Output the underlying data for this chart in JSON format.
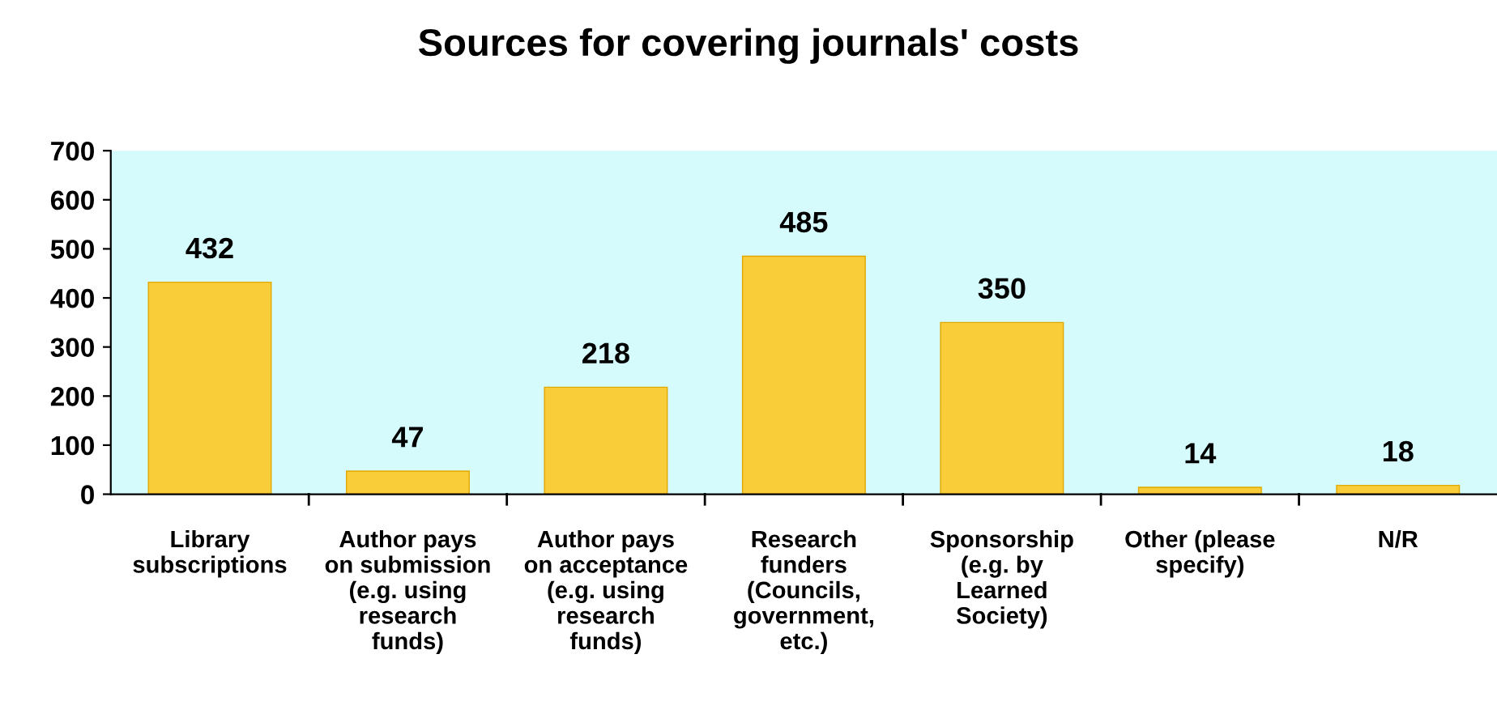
{
  "chart_data": {
    "type": "bar",
    "title": "Sources for covering journals' costs",
    "categories": [
      "Library\nsubscriptions",
      "Author pays\non submission\n(e.g. using\nresearch\nfunds)",
      "Author pays\non acceptance\n(e.g. using\nresearch\nfunds)",
      "Research\nfunders\n(Councils,\ngovernment,\netc.)",
      "Sponsorship\n(e.g. by\nLearned\nSociety)",
      "Other (please\nspecify)",
      "N/R"
    ],
    "values": [
      432,
      47,
      218,
      485,
      350,
      14,
      18
    ],
    "color": "#f9cc3a",
    "ylim": [
      0,
      700
    ],
    "yticks": [
      0,
      100,
      200,
      300,
      400,
      500,
      600,
      700
    ],
    "grid": false,
    "data_labels": true
  }
}
